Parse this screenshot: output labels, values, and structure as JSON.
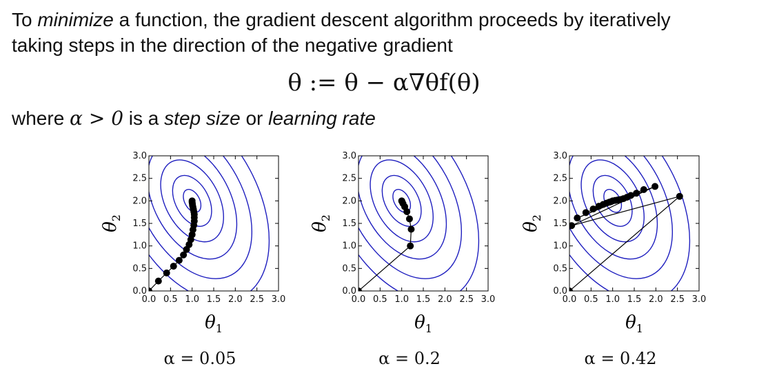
{
  "text": {
    "line1_pre": "To ",
    "line1_em": "minimize",
    "line1_post": " a function, the gradient descent algorithm proceeds by iteratively",
    "line2": "taking steps in the direction of the negative gradient",
    "formula": "θ := θ − α∇θf(θ)",
    "line3_pre": "where ",
    "line3_math": "α > 0",
    "line3_mid": " is a ",
    "line3_em1": "step size",
    "line3_or": " or ",
    "line3_em2": "learning rate"
  },
  "colors": {
    "contour": "#1f1fbf",
    "path": "#000000"
  },
  "chart_data": [
    {
      "type": "scatter",
      "caption": "α = 0.05",
      "xlabel": "θ1",
      "ylabel": "θ2",
      "xlim": [
        0,
        3
      ],
      "ylim": [
        0,
        3
      ],
      "xticks": [
        "0.0",
        "0.5",
        "1.0",
        "1.5",
        "2.0",
        "2.5",
        "3.0"
      ],
      "yticks": [
        "0.0",
        "0.5",
        "1.0",
        "1.5",
        "2.0",
        "2.5",
        "3.0"
      ],
      "contour_center": [
        1.0,
        2.0
      ],
      "points": [
        [
          0,
          0
        ],
        [
          0.22,
          0.22
        ],
        [
          0.41,
          0.4
        ],
        [
          0.57,
          0.55
        ],
        [
          0.7,
          0.68
        ],
        [
          0.8,
          0.8
        ],
        [
          0.87,
          0.92
        ],
        [
          0.93,
          1.03
        ],
        [
          0.97,
          1.14
        ],
        [
          1.0,
          1.25
        ],
        [
          1.02,
          1.36
        ],
        [
          1.04,
          1.46
        ],
        [
          1.05,
          1.55
        ],
        [
          1.05,
          1.63
        ],
        [
          1.05,
          1.7
        ],
        [
          1.04,
          1.76
        ],
        [
          1.03,
          1.81
        ],
        [
          1.02,
          1.86
        ],
        [
          1.01,
          1.9
        ],
        [
          1.005,
          1.94
        ],
        [
          1.0,
          1.97
        ],
        [
          1.0,
          2.0
        ]
      ]
    },
    {
      "type": "scatter",
      "caption": "α = 0.2",
      "xlabel": "θ1",
      "ylabel": "θ2",
      "xlim": [
        0,
        3
      ],
      "ylim": [
        0,
        3
      ],
      "xticks": [
        "0.0",
        "0.5",
        "1.0",
        "1.5",
        "2.0",
        "2.5",
        "3.0"
      ],
      "yticks": [
        "0.0",
        "0.5",
        "1.0",
        "1.5",
        "2.0",
        "2.5",
        "3.0"
      ],
      "contour_center": [
        1.0,
        2.0
      ],
      "points": [
        [
          0,
          0
        ],
        [
          1.2,
          1.0
        ],
        [
          1.22,
          1.37
        ],
        [
          1.18,
          1.6
        ],
        [
          1.12,
          1.76
        ],
        [
          1.07,
          1.87
        ],
        [
          1.03,
          1.94
        ],
        [
          1.01,
          1.98
        ],
        [
          1.0,
          2.0
        ]
      ]
    },
    {
      "type": "scatter",
      "caption": "α = 0.42",
      "xlabel": "θ1",
      "ylabel": "θ2",
      "xlim": [
        0,
        3
      ],
      "ylim": [
        0,
        3
      ],
      "xticks": [
        "0.0",
        "0.5",
        "1.0",
        "1.5",
        "2.0",
        "2.5",
        "3.0"
      ],
      "yticks": [
        "0.0",
        "0.5",
        "1.0",
        "1.5",
        "2.0",
        "2.5",
        "3.0"
      ],
      "contour_center": [
        1.0,
        2.0
      ],
      "points": [
        [
          0,
          0
        ],
        [
          2.55,
          2.1
        ],
        [
          0.05,
          1.45
        ],
        [
          1.98,
          2.32
        ],
        [
          0.18,
          1.62
        ],
        [
          1.72,
          2.25
        ],
        [
          0.38,
          1.74
        ],
        [
          1.55,
          2.17
        ],
        [
          0.55,
          1.82
        ],
        [
          1.42,
          2.12
        ],
        [
          0.68,
          1.88
        ],
        [
          1.33,
          2.08
        ],
        [
          0.78,
          1.92
        ],
        [
          1.25,
          2.05
        ],
        [
          0.86,
          1.95
        ],
        [
          1.18,
          2.03
        ],
        [
          0.92,
          1.97
        ],
        [
          1.12,
          2.02
        ],
        [
          0.96,
          1.98
        ],
        [
          1.06,
          2.01
        ],
        [
          1.0,
          2.0
        ]
      ]
    }
  ]
}
